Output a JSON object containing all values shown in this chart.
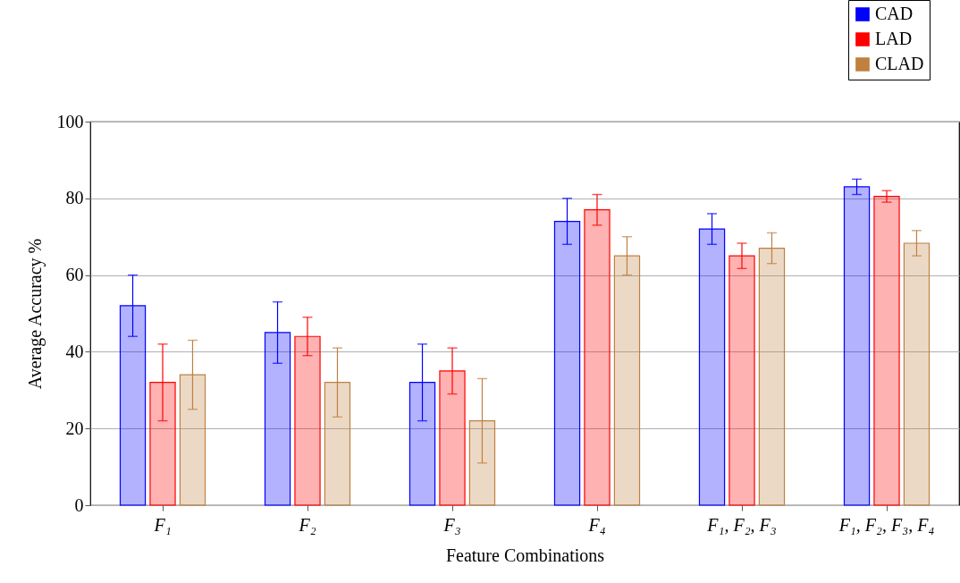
{
  "chart_data": {
    "type": "bar",
    "categories": [
      "F₁",
      "F₂",
      "F₃",
      "F₄",
      "F₁, F₂, F₃",
      "F₁, F₂, F₃, F₄"
    ],
    "xlabel": "Feature Combinations",
    "ylabel": "Average Accuracy %",
    "ylim": [
      0,
      100
    ],
    "yticks": [
      0,
      20,
      40,
      60,
      80,
      100
    ],
    "grid": "y",
    "legend": "top right",
    "series": [
      {
        "name": "CAD",
        "color": "#0000ff",
        "values": [
          52,
          45,
          32,
          74,
          72,
          83
        ],
        "errors": [
          8,
          8,
          10,
          6,
          4,
          2
        ]
      },
      {
        "name": "LAD",
        "color": "#ff0000",
        "values": [
          32,
          44,
          35,
          77,
          65,
          80.5
        ],
        "errors": [
          10,
          5,
          6,
          4,
          3.3,
          1.5
        ]
      },
      {
        "name": "CLAD",
        "color": "#bf8040",
        "values": [
          34,
          32,
          22,
          65,
          67,
          68.3
        ],
        "errors": [
          9,
          9,
          11,
          5,
          4,
          3.3
        ]
      }
    ]
  }
}
